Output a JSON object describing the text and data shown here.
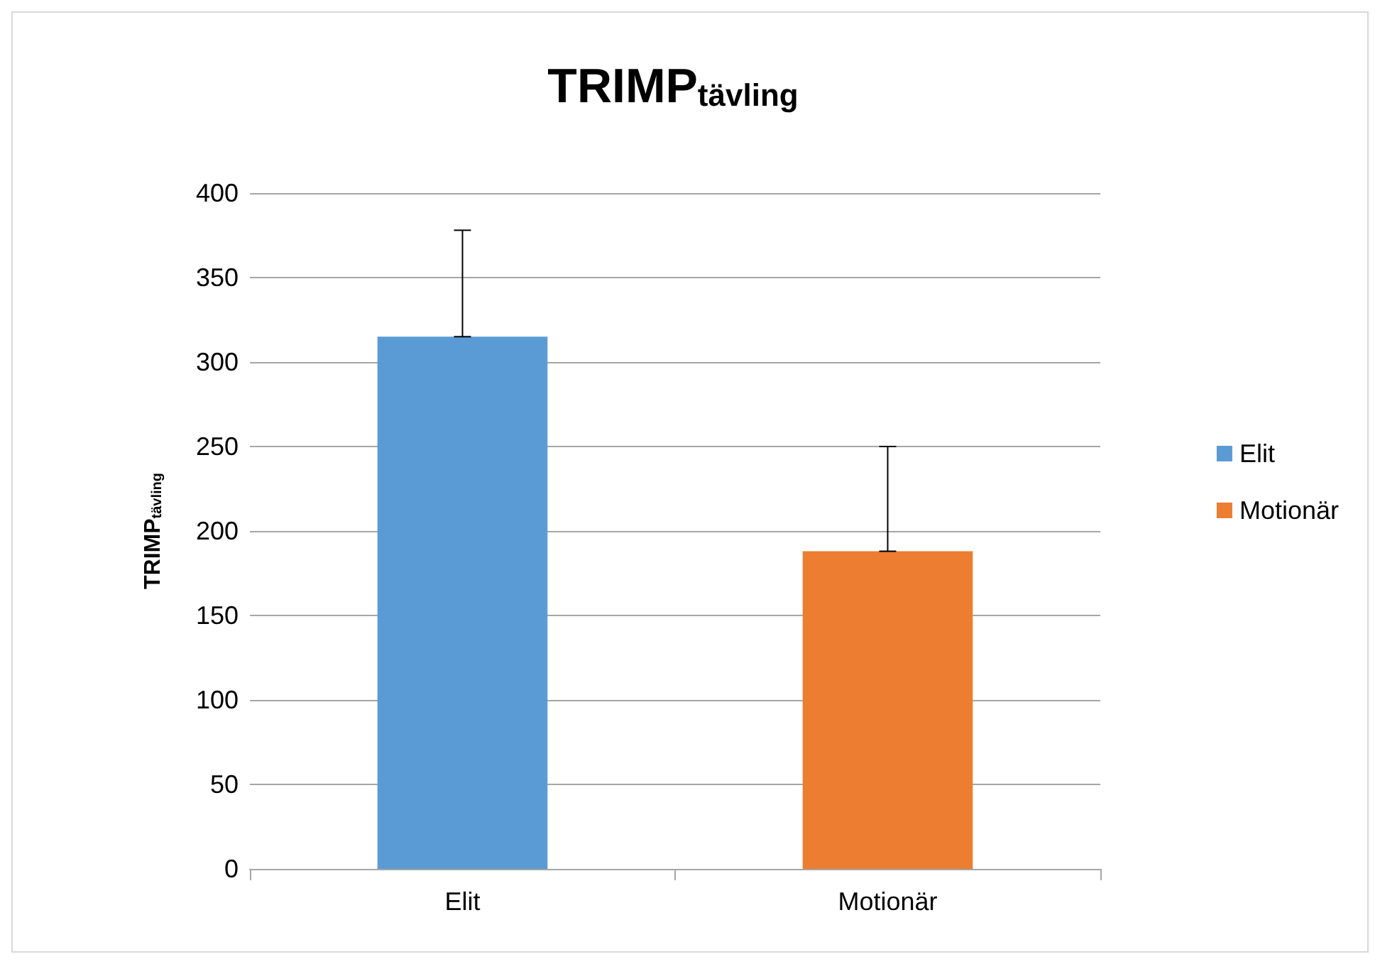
{
  "chart_data": {
    "type": "bar",
    "title": "TRIMP$_{tävling}$",
    "ylabel": "TRIMP$_{tävling}$",
    "categories": [
      "Elit",
      "Motionär"
    ],
    "series": [
      {
        "name": "Elit",
        "color": "#5b9bd5",
        "values": [
          315,
          null
        ],
        "errors": [
          [
            315,
            378
          ],
          null
        ]
      },
      {
        "name": "Motionär",
        "color": "#ed7d31",
        "values": [
          null,
          188
        ],
        "errors": [
          null,
          [
            188,
            250
          ]
        ]
      }
    ],
    "ylim": [
      0,
      400
    ],
    "yticks": [
      0,
      50,
      100,
      150,
      200,
      250,
      300,
      350,
      400
    ],
    "grid": "y",
    "legend": "right"
  }
}
